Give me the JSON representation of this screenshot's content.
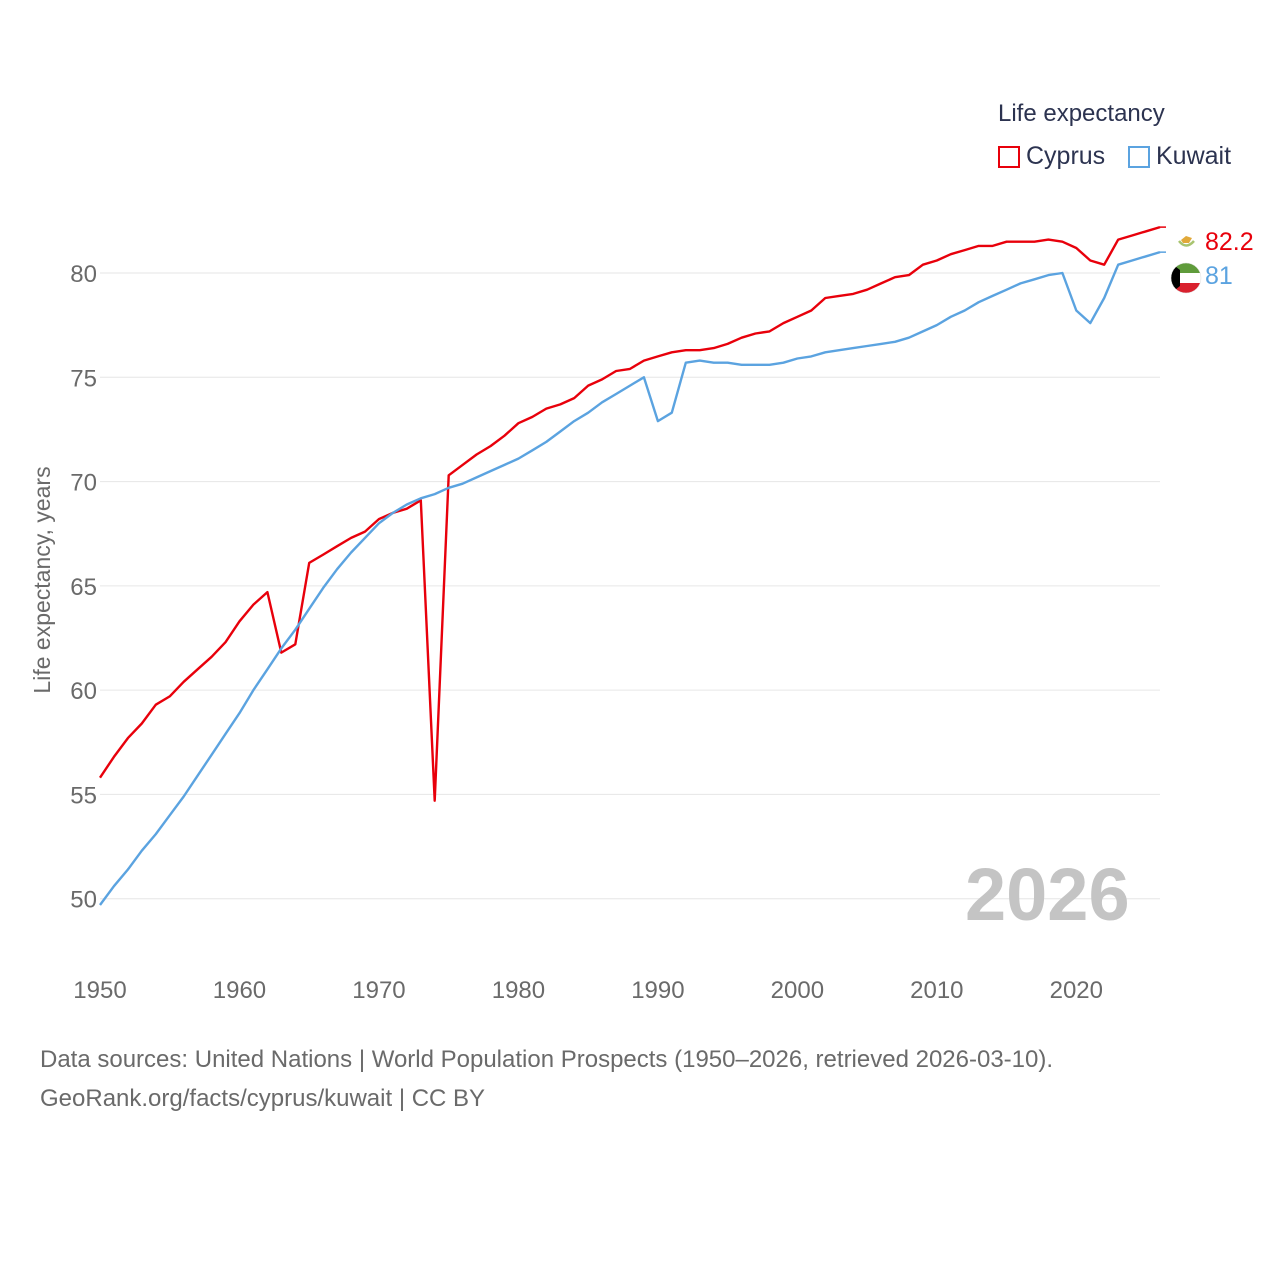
{
  "legend": {
    "title": "Life expectancy"
  },
  "watermark_year": "2026",
  "source": {
    "line1": "Data sources: United Nations | World Population Prospects (1950–2026, retrieved 2026-03-10).",
    "line2": "GeoRank.org/facts/cyprus/kuwait | CC BY"
  },
  "chart_data": {
    "type": "line",
    "title": "",
    "xlabel": "",
    "ylabel": "Life expectancy, years",
    "xlim": [
      1950,
      2026
    ],
    "ylim": [
      48.5,
      83.5
    ],
    "xticks": [
      1950,
      1960,
      1970,
      1980,
      1990,
      2000,
      2010,
      2020
    ],
    "yticks": [
      50,
      55,
      60,
      65,
      70,
      75,
      80
    ],
    "grid": true,
    "legend_position": "top-right",
    "series": [
      {
        "name": "Cyprus",
        "color": "#e8000b",
        "end_label": "82.2",
        "flag_icon": "cyprus-flag-icon",
        "x": [
          1950,
          1951,
          1952,
          1953,
          1954,
          1955,
          1956,
          1957,
          1958,
          1959,
          1960,
          1961,
          1962,
          1963,
          1964,
          1965,
          1966,
          1967,
          1968,
          1969,
          1970,
          1971,
          1972,
          1973,
          1974,
          1975,
          1976,
          1977,
          1978,
          1979,
          1980,
          1981,
          1982,
          1983,
          1984,
          1985,
          1986,
          1987,
          1988,
          1989,
          1990,
          1991,
          1992,
          1993,
          1994,
          1995,
          1996,
          1997,
          1998,
          1999,
          2000,
          2001,
          2002,
          2003,
          2004,
          2005,
          2006,
          2007,
          2008,
          2009,
          2010,
          2011,
          2012,
          2013,
          2014,
          2015,
          2016,
          2017,
          2018,
          2019,
          2020,
          2021,
          2022,
          2023,
          2024,
          2025,
          2026
        ],
        "values": [
          55.8,
          56.8,
          57.7,
          58.4,
          59.3,
          59.7,
          60.4,
          61.0,
          61.6,
          62.3,
          63.3,
          64.1,
          64.7,
          61.8,
          62.2,
          66.1,
          66.5,
          66.9,
          67.3,
          67.6,
          68.2,
          68.5,
          68.7,
          69.1,
          54.7,
          70.3,
          70.8,
          71.3,
          71.7,
          72.2,
          72.8,
          73.1,
          73.5,
          73.7,
          74.0,
          74.6,
          74.9,
          75.3,
          75.4,
          75.8,
          76.0,
          76.2,
          76.3,
          76.3,
          76.4,
          76.6,
          76.9,
          77.1,
          77.2,
          77.6,
          77.9,
          78.2,
          78.8,
          78.9,
          79.0,
          79.2,
          79.5,
          79.8,
          79.9,
          80.4,
          80.6,
          80.9,
          81.1,
          81.3,
          81.3,
          81.5,
          81.5,
          81.5,
          81.6,
          81.5,
          81.2,
          80.6,
          80.4,
          81.6,
          81.8,
          82.0,
          82.2
        ]
      },
      {
        "name": "Kuwait",
        "color": "#5ba3e0",
        "end_label": "81",
        "flag_icon": "kuwait-flag-icon",
        "x": [
          1950,
          1951,
          1952,
          1953,
          1954,
          1955,
          1956,
          1957,
          1958,
          1959,
          1960,
          1961,
          1962,
          1963,
          1964,
          1965,
          1966,
          1967,
          1968,
          1969,
          1970,
          1971,
          1972,
          1973,
          1974,
          1975,
          1976,
          1977,
          1978,
          1979,
          1980,
          1981,
          1982,
          1983,
          1984,
          1985,
          1986,
          1987,
          1988,
          1989,
          1990,
          1991,
          1992,
          1993,
          1994,
          1995,
          1996,
          1997,
          1998,
          1999,
          2000,
          2001,
          2002,
          2003,
          2004,
          2005,
          2006,
          2007,
          2008,
          2009,
          2010,
          2011,
          2012,
          2013,
          2014,
          2015,
          2016,
          2017,
          2018,
          2019,
          2020,
          2021,
          2022,
          2023,
          2024,
          2025,
          2026
        ],
        "values": [
          49.7,
          50.6,
          51.4,
          52.3,
          53.1,
          54.0,
          54.9,
          55.9,
          56.9,
          57.9,
          58.9,
          60.0,
          61.0,
          62.0,
          62.9,
          63.9,
          64.9,
          65.8,
          66.6,
          67.3,
          68.0,
          68.5,
          68.9,
          69.2,
          69.4,
          69.7,
          69.9,
          70.2,
          70.5,
          70.8,
          71.1,
          71.5,
          71.9,
          72.4,
          72.9,
          73.3,
          73.8,
          74.2,
          74.6,
          75.0,
          72.9,
          73.3,
          75.7,
          75.8,
          75.7,
          75.7,
          75.6,
          75.6,
          75.6,
          75.7,
          75.9,
          76.0,
          76.2,
          76.3,
          76.4,
          76.5,
          76.6,
          76.7,
          76.9,
          77.2,
          77.5,
          77.9,
          78.2,
          78.6,
          78.9,
          79.2,
          79.5,
          79.7,
          79.9,
          80.0,
          78.2,
          77.6,
          78.8,
          80.4,
          80.6,
          80.8,
          81.0
        ]
      }
    ]
  }
}
